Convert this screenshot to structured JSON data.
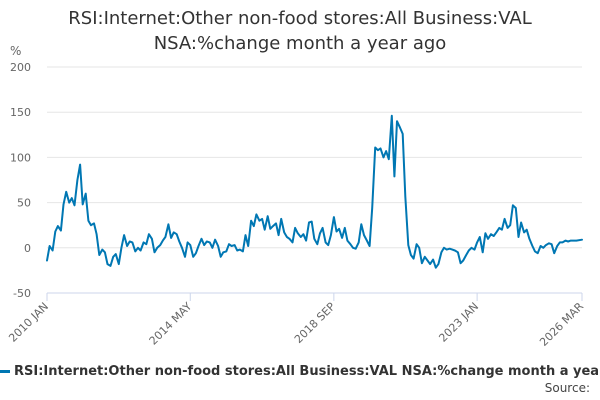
{
  "chart_data": {
    "type": "line",
    "title_line1": "RSI:Internet:Other non-food stores:All Business:VAL",
    "title_line2": "NSA:%change month a year ago",
    "ylabel": "%",
    "ylim": [
      -50,
      200
    ],
    "yticks": [
      "-50",
      "0",
      "50",
      "100",
      "150",
      "200"
    ],
    "x_tick_labels": [
      {
        "label": "2010 JAN",
        "t": 2010.0
      },
      {
        "label": "2014 MAY",
        "t": 2014.33
      },
      {
        "label": "2018 SEP",
        "t": 2018.67
      },
      {
        "label": "2023 JAN",
        "t": 2023.0
      },
      {
        "label": "2026 MAR",
        "t": 2026.17
      }
    ],
    "xlim": [
      2010.0,
      2026.17
    ],
    "grid": true,
    "legend_position": "bottom",
    "line_color": "#0077b3",
    "series": [
      {
        "name": "RSI:Internet:Other non-food stores:All Business:VAL NSA:%change month a year ago",
        "points": [
          [
            2010.0,
            -14
          ],
          [
            2010.08,
            2
          ],
          [
            2010.17,
            -3
          ],
          [
            2010.25,
            18
          ],
          [
            2010.33,
            24
          ],
          [
            2010.42,
            19
          ],
          [
            2010.5,
            48
          ],
          [
            2010.58,
            62
          ],
          [
            2010.67,
            50
          ],
          [
            2010.75,
            55
          ],
          [
            2010.83,
            47
          ],
          [
            2010.92,
            75
          ],
          [
            2011.0,
            92
          ],
          [
            2011.08,
            48
          ],
          [
            2011.17,
            60
          ],
          [
            2011.25,
            30
          ],
          [
            2011.33,
            25
          ],
          [
            2011.42,
            27
          ],
          [
            2011.5,
            15
          ],
          [
            2011.58,
            -8
          ],
          [
            2011.67,
            -2
          ],
          [
            2011.75,
            -5
          ],
          [
            2011.83,
            -18
          ],
          [
            2011.92,
            -20
          ],
          [
            2012.0,
            -10
          ],
          [
            2012.08,
            -7
          ],
          [
            2012.17,
            -18
          ],
          [
            2012.25,
            0
          ],
          [
            2012.33,
            14
          ],
          [
            2012.42,
            2
          ],
          [
            2012.5,
            7
          ],
          [
            2012.58,
            6
          ],
          [
            2012.67,
            -4
          ],
          [
            2012.75,
            0
          ],
          [
            2012.83,
            -3
          ],
          [
            2012.92,
            6
          ],
          [
            2013.0,
            4
          ],
          [
            2013.08,
            15
          ],
          [
            2013.17,
            10
          ],
          [
            2013.25,
            -5
          ],
          [
            2013.33,
            0
          ],
          [
            2013.42,
            3
          ],
          [
            2013.5,
            8
          ],
          [
            2013.58,
            12
          ],
          [
            2013.67,
            26
          ],
          [
            2013.75,
            11
          ],
          [
            2013.83,
            17
          ],
          [
            2013.92,
            15
          ],
          [
            2014.0,
            7
          ],
          [
            2014.08,
            0
          ],
          [
            2014.17,
            -10
          ],
          [
            2014.25,
            6
          ],
          [
            2014.33,
            3
          ],
          [
            2014.42,
            -10
          ],
          [
            2014.5,
            -6
          ],
          [
            2014.58,
            2
          ],
          [
            2014.67,
            10
          ],
          [
            2014.75,
            3
          ],
          [
            2014.83,
            7
          ],
          [
            2014.92,
            6
          ],
          [
            2015.0,
            0
          ],
          [
            2015.08,
            9
          ],
          [
            2015.17,
            2
          ],
          [
            2015.25,
            -10
          ],
          [
            2015.33,
            -5
          ],
          [
            2015.42,
            -4
          ],
          [
            2015.5,
            4
          ],
          [
            2015.58,
            2
          ],
          [
            2015.67,
            3
          ],
          [
            2015.75,
            -3
          ],
          [
            2015.83,
            -2
          ],
          [
            2015.92,
            -4
          ],
          [
            2016.0,
            14
          ],
          [
            2016.08,
            2
          ],
          [
            2016.17,
            30
          ],
          [
            2016.25,
            24
          ],
          [
            2016.33,
            37
          ],
          [
            2016.42,
            30
          ],
          [
            2016.5,
            32
          ],
          [
            2016.58,
            20
          ],
          [
            2016.67,
            35
          ],
          [
            2016.75,
            21
          ],
          [
            2016.83,
            24
          ],
          [
            2016.92,
            27
          ],
          [
            2017.0,
            14
          ],
          [
            2017.08,
            32
          ],
          [
            2017.17,
            17
          ],
          [
            2017.25,
            12
          ],
          [
            2017.33,
            10
          ],
          [
            2017.42,
            6
          ],
          [
            2017.5,
            22
          ],
          [
            2017.58,
            16
          ],
          [
            2017.67,
            12
          ],
          [
            2017.75,
            15
          ],
          [
            2017.83,
            8
          ],
          [
            2017.92,
            28
          ],
          [
            2018.0,
            29
          ],
          [
            2018.08,
            10
          ],
          [
            2018.17,
            4
          ],
          [
            2018.25,
            16
          ],
          [
            2018.33,
            22
          ],
          [
            2018.42,
            6
          ],
          [
            2018.5,
            3
          ],
          [
            2018.58,
            14
          ],
          [
            2018.67,
            34
          ],
          [
            2018.75,
            18
          ],
          [
            2018.83,
            21
          ],
          [
            2018.92,
            11
          ],
          [
            2019.0,
            22
          ],
          [
            2019.08,
            8
          ],
          [
            2019.17,
            4
          ],
          [
            2019.25,
            0
          ],
          [
            2019.33,
            -1
          ],
          [
            2019.42,
            6
          ],
          [
            2019.5,
            26
          ],
          [
            2019.58,
            14
          ],
          [
            2019.67,
            8
          ],
          [
            2019.75,
            2
          ],
          [
            2019.83,
            44
          ],
          [
            2019.92,
            111
          ],
          [
            2020.0,
            108
          ],
          [
            2020.08,
            110
          ],
          [
            2020.17,
            100
          ],
          [
            2020.25,
            107
          ],
          [
            2020.33,
            98
          ],
          [
            2020.42,
            146
          ],
          [
            2020.5,
            79
          ],
          [
            2020.58,
            140
          ],
          [
            2020.67,
            133
          ],
          [
            2020.75,
            126
          ],
          [
            2020.83,
            57
          ],
          [
            2020.92,
            3
          ],
          [
            2021.0,
            -8
          ],
          [
            2021.08,
            -12
          ],
          [
            2021.17,
            4
          ],
          [
            2021.25,
            0
          ],
          [
            2021.33,
            -17
          ],
          [
            2021.42,
            -10
          ],
          [
            2021.5,
            -14
          ],
          [
            2021.58,
            -18
          ],
          [
            2021.67,
            -13
          ],
          [
            2021.75,
            -22
          ],
          [
            2021.83,
            -18
          ],
          [
            2021.92,
            -5
          ],
          [
            2022.0,
            0
          ],
          [
            2022.08,
            -2
          ],
          [
            2022.17,
            -1
          ],
          [
            2022.25,
            -2
          ],
          [
            2022.33,
            -3
          ],
          [
            2022.42,
            -5
          ],
          [
            2022.5,
            -17
          ],
          [
            2022.58,
            -14
          ],
          [
            2022.67,
            -8
          ],
          [
            2022.75,
            -3
          ],
          [
            2022.83,
            0
          ],
          [
            2022.92,
            -2
          ],
          [
            2023.0,
            6
          ],
          [
            2023.08,
            12
          ],
          [
            2023.17,
            -5
          ],
          [
            2023.25,
            16
          ],
          [
            2023.33,
            10
          ],
          [
            2023.42,
            15
          ],
          [
            2023.5,
            13
          ],
          [
            2023.58,
            17
          ],
          [
            2023.67,
            22
          ],
          [
            2023.75,
            20
          ],
          [
            2023.83,
            32
          ],
          [
            2023.92,
            22
          ],
          [
            2024.0,
            25
          ],
          [
            2024.08,
            47
          ],
          [
            2024.17,
            44
          ],
          [
            2024.25,
            12
          ],
          [
            2024.33,
            28
          ],
          [
            2024.42,
            17
          ],
          [
            2024.5,
            20
          ],
          [
            2024.58,
            10
          ],
          [
            2024.67,
            2
          ],
          [
            2024.75,
            -4
          ],
          [
            2024.83,
            -6
          ],
          [
            2024.92,
            2
          ],
          [
            2025.0,
            0
          ],
          [
            2025.08,
            3
          ],
          [
            2025.17,
            5
          ],
          [
            2025.25,
            4
          ],
          [
            2025.33,
            -6
          ],
          [
            2025.42,
            2
          ],
          [
            2025.5,
            6
          ],
          [
            2025.58,
            6
          ],
          [
            2025.67,
            8
          ],
          [
            2025.75,
            7
          ],
          [
            2025.83,
            8
          ],
          [
            2026.0,
            8
          ],
          [
            2026.17,
            9
          ]
        ]
      }
    ]
  },
  "legend_label": "RSI:Internet:Other non-food stores:All Business:VAL NSA:%change month a year ago",
  "source_label": "Source:"
}
